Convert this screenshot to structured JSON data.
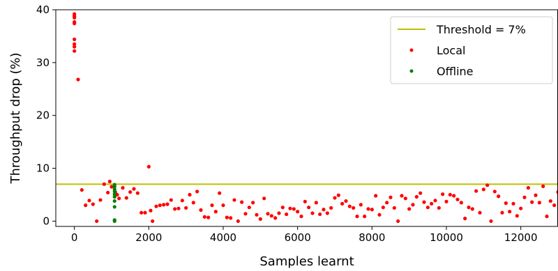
{
  "chart_data": {
    "type": "scatter",
    "xlabel": "Samples learnt",
    "ylabel": "Throughput drop (%)",
    "xlim": [
      -500,
      13000
    ],
    "ylim": [
      -1,
      40
    ],
    "xticks": [
      0,
      2000,
      4000,
      6000,
      8000,
      10000,
      12000
    ],
    "yticks": [
      0,
      10,
      20,
      30,
      40
    ],
    "xtick_labels": [
      "0",
      "2000",
      "4000",
      "6000",
      "8000",
      "10000",
      "12000"
    ],
    "ytick_labels": [
      "0",
      "10",
      "20",
      "30",
      "40"
    ],
    "legend_position": "top-right",
    "threshold": {
      "name": "Threshold = 7%",
      "value": 7,
      "color": "#bfbf00"
    },
    "series": [
      {
        "name": "Local",
        "color": "#ff0000",
        "points": [
          [
            0,
            39.2
          ],
          [
            0,
            38.8
          ],
          [
            0,
            38.5
          ],
          [
            0,
            37.7
          ],
          [
            0,
            37.4
          ],
          [
            0,
            34.4
          ],
          [
            0,
            33.5
          ],
          [
            0,
            33.0
          ],
          [
            0,
            32.2
          ],
          [
            100,
            26.8
          ],
          [
            200,
            5.9
          ],
          [
            300,
            3.0
          ],
          [
            400,
            3.9
          ],
          [
            500,
            3.2
          ],
          [
            600,
            0.0
          ],
          [
            700,
            4.0
          ],
          [
            800,
            7.0
          ],
          [
            900,
            5.4
          ],
          [
            950,
            7.5
          ],
          [
            1000,
            6.5
          ],
          [
            1100,
            5.5
          ],
          [
            1150,
            5.0
          ],
          [
            1200,
            4.3
          ],
          [
            1300,
            6.3
          ],
          [
            1400,
            4.4
          ],
          [
            1500,
            5.5
          ],
          [
            1600,
            6.1
          ],
          [
            1700,
            5.3
          ],
          [
            1800,
            1.6
          ],
          [
            1900,
            1.6
          ],
          [
            2000,
            10.3
          ],
          [
            2050,
            2.0
          ],
          [
            2100,
            0.0
          ],
          [
            2200,
            2.8
          ],
          [
            2300,
            3.0
          ],
          [
            2400,
            3.1
          ],
          [
            2500,
            3.2
          ],
          [
            2600,
            4.0
          ],
          [
            2700,
            2.3
          ],
          [
            2800,
            2.4
          ],
          [
            2900,
            3.9
          ],
          [
            3000,
            2.5
          ],
          [
            3100,
            5.0
          ],
          [
            3200,
            3.5
          ],
          [
            3300,
            5.6
          ],
          [
            3400,
            2.1
          ],
          [
            3500,
            0.8
          ],
          [
            3600,
            0.7
          ],
          [
            3700,
            3.0
          ],
          [
            3800,
            1.8
          ],
          [
            3900,
            5.3
          ],
          [
            4000,
            3.0
          ],
          [
            4100,
            0.7
          ],
          [
            4200,
            0.6
          ],
          [
            4300,
            4.0
          ],
          [
            4400,
            0.0
          ],
          [
            4500,
            3.6
          ],
          [
            4600,
            1.4
          ],
          [
            4700,
            2.6
          ],
          [
            4800,
            3.5
          ],
          [
            4900,
            1.2
          ],
          [
            5000,
            0.4
          ],
          [
            5100,
            4.3
          ],
          [
            5200,
            1.4
          ],
          [
            5300,
            1.0
          ],
          [
            5400,
            0.6
          ],
          [
            5500,
            1.5
          ],
          [
            5600,
            2.6
          ],
          [
            5700,
            1.3
          ],
          [
            5800,
            2.4
          ],
          [
            5900,
            2.3
          ],
          [
            6000,
            1.8
          ],
          [
            6100,
            0.9
          ],
          [
            6200,
            3.7
          ],
          [
            6300,
            2.6
          ],
          [
            6400,
            1.5
          ],
          [
            6500,
            3.5
          ],
          [
            6600,
            1.3
          ],
          [
            6700,
            2.2
          ],
          [
            6800,
            1.5
          ],
          [
            6900,
            2.5
          ],
          [
            7000,
            4.4
          ],
          [
            7100,
            4.9
          ],
          [
            7200,
            3.3
          ],
          [
            7300,
            3.8
          ],
          [
            7400,
            2.8
          ],
          [
            7500,
            2.5
          ],
          [
            7600,
            0.9
          ],
          [
            7700,
            3.1
          ],
          [
            7800,
            0.9
          ],
          [
            7900,
            2.3
          ],
          [
            8000,
            2.2
          ],
          [
            8100,
            4.8
          ],
          [
            8200,
            1.2
          ],
          [
            8300,
            2.6
          ],
          [
            8400,
            3.5
          ],
          [
            8500,
            4.5
          ],
          [
            8600,
            2.5
          ],
          [
            8700,
            0.0
          ],
          [
            8800,
            4.8
          ],
          [
            8900,
            4.3
          ],
          [
            9000,
            2.3
          ],
          [
            9100,
            3.1
          ],
          [
            9200,
            4.6
          ],
          [
            9300,
            5.3
          ],
          [
            9400,
            3.6
          ],
          [
            9500,
            2.6
          ],
          [
            9600,
            3.3
          ],
          [
            9700,
            3.9
          ],
          [
            9800,
            2.5
          ],
          [
            9900,
            5.1
          ],
          [
            10000,
            3.7
          ],
          [
            10100,
            5.0
          ],
          [
            10200,
            4.8
          ],
          [
            10300,
            4.1
          ],
          [
            10400,
            3.5
          ],
          [
            10500,
            0.5
          ],
          [
            10600,
            2.6
          ],
          [
            10700,
            2.3
          ],
          [
            10800,
            5.7
          ],
          [
            10900,
            1.6
          ],
          [
            11000,
            6.0
          ],
          [
            11100,
            6.8
          ],
          [
            11200,
            0.0
          ],
          [
            11300,
            5.6
          ],
          [
            11400,
            4.7
          ],
          [
            11500,
            1.6
          ],
          [
            11600,
            3.4
          ],
          [
            11700,
            1.8
          ],
          [
            11800,
            3.3
          ],
          [
            11900,
            1.0
          ],
          [
            12000,
            2.4
          ],
          [
            12100,
            4.5
          ],
          [
            12200,
            6.3
          ],
          [
            12300,
            3.6
          ],
          [
            12400,
            4.9
          ],
          [
            12500,
            3.5
          ],
          [
            12600,
            6.6
          ],
          [
            12700,
            0.9
          ],
          [
            12800,
            3.8
          ],
          [
            12900,
            3.0
          ],
          [
            13000,
            5.5
          ]
        ]
      },
      {
        "name": "Offline",
        "color": "#008000",
        "points": [
          [
            1080,
            6.9
          ],
          [
            1080,
            6.5
          ],
          [
            1080,
            6.0
          ],
          [
            1080,
            5.6
          ],
          [
            1080,
            5.1
          ],
          [
            1080,
            4.6
          ],
          [
            1080,
            3.8
          ],
          [
            1080,
            2.7
          ],
          [
            1080,
            0.2
          ],
          [
            1080,
            0.0
          ]
        ]
      }
    ]
  }
}
